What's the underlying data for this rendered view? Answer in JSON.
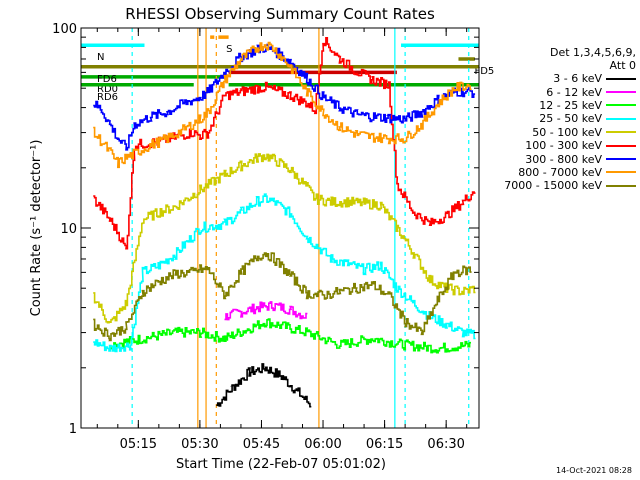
{
  "chart_data": {
    "type": "line",
    "title": "RHESSI Observing Summary Count Rates",
    "xlabel": "Start Time (22-Feb-07 05:01:02)",
    "ylabel": "Count Rate (s⁻¹ detector⁻¹)",
    "yscale": "log",
    "ylim": [
      1,
      100
    ],
    "xlim": [
      "05:01:02",
      "06:38:00"
    ],
    "x_ticks": [
      "05:15",
      "05:30",
      "05:45",
      "06:00",
      "06:15",
      "06:30"
    ],
    "y_ticks": [
      "1",
      "10",
      "100"
    ],
    "legend_title": "Det 1,3,4,5,6,9,",
    "legend_subtitle": "Att 0",
    "legend_position": "right",
    "series": [
      {
        "name": "3 - 6 keV",
        "color": "#000000",
        "points": [
          [
            "05:34",
            1.3
          ],
          [
            "05:38",
            1.6
          ],
          [
            "05:42",
            1.9
          ],
          [
            "05:46",
            2.0
          ],
          [
            "05:50",
            1.8
          ],
          [
            "05:54",
            1.5
          ],
          [
            "05:57",
            1.3
          ]
        ]
      },
      {
        "name": "6 - 12 keV",
        "color": "#ff00ff",
        "points": [
          [
            "05:36",
            3.6
          ],
          [
            "05:40",
            3.8
          ],
          [
            "05:44",
            4.0
          ],
          [
            "05:48",
            4.1
          ],
          [
            "05:52",
            3.9
          ],
          [
            "05:56",
            3.6
          ]
        ]
      },
      {
        "name": "12 - 25 keV",
        "color": "#00ff00",
        "points": [
          [
            "05:08",
            2.6
          ],
          [
            "05:16",
            2.8
          ],
          [
            "05:24",
            3.0
          ],
          [
            "05:30",
            3.0
          ],
          [
            "05:36",
            2.8
          ],
          [
            "05:46",
            3.4
          ],
          [
            "05:56",
            3.0
          ],
          [
            "06:04",
            2.6
          ],
          [
            "06:12",
            2.8
          ],
          [
            "06:20",
            2.6
          ],
          [
            "06:28",
            2.5
          ],
          [
            "06:36",
            2.6
          ]
        ]
      },
      {
        "name": "25 - 50 keV",
        "color": "#00ffff",
        "points": [
          [
            "05:04",
            2.7
          ],
          [
            "05:08",
            2.5
          ],
          [
            "05:13",
            2.6
          ],
          [
            "05:16",
            6.0
          ],
          [
            "05:20",
            6.5
          ],
          [
            "05:24",
            7.4
          ],
          [
            "05:28",
            9.0
          ],
          [
            "05:30",
            10.0
          ],
          [
            "05:36",
            10.5
          ],
          [
            "05:40",
            12.0
          ],
          [
            "05:44",
            13.6
          ],
          [
            "05:46",
            14.0
          ],
          [
            "05:48",
            13.5
          ],
          [
            "05:52",
            11.8
          ],
          [
            "05:56",
            9.0
          ],
          [
            "05:58",
            8.3
          ],
          [
            "06:02",
            7.0
          ],
          [
            "06:06",
            6.6
          ],
          [
            "06:10",
            6.2
          ],
          [
            "06:14",
            6.5
          ],
          [
            "06:18",
            5.0
          ],
          [
            "06:22",
            4.2
          ],
          [
            "06:26",
            3.6
          ],
          [
            "06:30",
            3.3
          ],
          [
            "06:34",
            3.0
          ],
          [
            "06:37",
            2.9
          ]
        ]
      },
      {
        "name": "50 - 100 keV",
        "color": "#cccc00",
        "points": [
          [
            "05:04",
            4.6
          ],
          [
            "05:08",
            3.3
          ],
          [
            "05:12",
            4.2
          ],
          [
            "05:16",
            11.0
          ],
          [
            "05:20",
            12.0
          ],
          [
            "05:24",
            12.8
          ],
          [
            "05:28",
            14.5
          ],
          [
            "05:30",
            15.5
          ],
          [
            "05:36",
            18.5
          ],
          [
            "05:40",
            20.5
          ],
          [
            "05:44",
            22.5
          ],
          [
            "05:46",
            23.0
          ],
          [
            "05:48",
            22.0
          ],
          [
            "05:52",
            19.5
          ],
          [
            "05:56",
            16.0
          ],
          [
            "05:58",
            14.0
          ],
          [
            "06:02",
            13.5
          ],
          [
            "06:06",
            13.5
          ],
          [
            "06:10",
            13.3
          ],
          [
            "06:14",
            13.0
          ],
          [
            "06:18",
            10.0
          ],
          [
            "06:22",
            7.5
          ],
          [
            "06:26",
            5.5
          ],
          [
            "06:30",
            5.0
          ],
          [
            "06:34",
            4.8
          ],
          [
            "06:37",
            5.0
          ]
        ]
      },
      {
        "name": "100 - 300 keV",
        "color": "#ff0000",
        "points": [
          [
            "05:04",
            14.0
          ],
          [
            "05:06",
            12.5
          ],
          [
            "05:08",
            11.0
          ],
          [
            "05:10",
            9.5
          ],
          [
            "05:12",
            7.8
          ],
          [
            "05:14",
            26.0
          ],
          [
            "05:20",
            27.0
          ],
          [
            "05:24",
            28.5
          ],
          [
            "05:28",
            30.0
          ],
          [
            "05:30",
            29.0
          ],
          [
            "05:32",
            30.0
          ],
          [
            "05:36",
            46.0
          ],
          [
            "05:40",
            48.0
          ],
          [
            "05:44",
            50.0
          ],
          [
            "05:46",
            50.5
          ],
          [
            "05:48",
            49.0
          ],
          [
            "05:52",
            46.0
          ],
          [
            "05:56",
            42.0
          ],
          [
            "05:58",
            39.0
          ],
          [
            "06:00",
            88.0
          ],
          [
            "06:04",
            70.0
          ],
          [
            "06:08",
            61.0
          ],
          [
            "06:12",
            55.0
          ],
          [
            "06:16",
            52.0
          ],
          [
            "06:18",
            16.5
          ],
          [
            "06:22",
            12.0
          ],
          [
            "06:26",
            10.5
          ],
          [
            "06:30",
            11.5
          ],
          [
            "06:34",
            13.5
          ],
          [
            "06:37",
            15.5
          ]
        ]
      },
      {
        "name": "300 - 800 keV",
        "color": "#0000ff",
        "points": [
          [
            "05:04",
            42.0
          ],
          [
            "05:06",
            39.0
          ],
          [
            "05:08",
            33.0
          ],
          [
            "05:10",
            28.0
          ],
          [
            "05:12",
            25.0
          ],
          [
            "05:14",
            33.0
          ],
          [
            "05:18",
            36.0
          ],
          [
            "05:22",
            38.0
          ],
          [
            "05:26",
            42.0
          ],
          [
            "05:30",
            45.0
          ],
          [
            "05:32",
            48.0
          ],
          [
            "05:36",
            60.0
          ],
          [
            "05:40",
            72.0
          ],
          [
            "05:44",
            78.0
          ],
          [
            "05:46",
            80.0
          ],
          [
            "05:48",
            77.0
          ],
          [
            "05:52",
            68.0
          ],
          [
            "05:56",
            56.0
          ],
          [
            "06:00",
            45.0
          ],
          [
            "06:04",
            40.0
          ],
          [
            "06:08",
            37.0
          ],
          [
            "06:12",
            36.0
          ],
          [
            "06:16",
            35.5
          ],
          [
            "06:20",
            35.0
          ],
          [
            "06:24",
            38.0
          ],
          [
            "06:28",
            44.0
          ],
          [
            "06:32",
            48.0
          ],
          [
            "06:36",
            48.0
          ],
          [
            "06:37",
            47.0
          ]
        ]
      },
      {
        "name": "800 - 7000 keV",
        "color": "#ff9900",
        "points": [
          [
            "05:04",
            30.0
          ],
          [
            "05:06",
            27.0
          ],
          [
            "05:08",
            24.0
          ],
          [
            "05:10",
            21.0
          ],
          [
            "05:12",
            22.5
          ],
          [
            "05:14",
            23.5
          ],
          [
            "05:18",
            26.0
          ],
          [
            "05:22",
            28.0
          ],
          [
            "05:26",
            31.0
          ],
          [
            "05:30",
            35.0
          ],
          [
            "05:32",
            38.0
          ],
          [
            "05:36",
            55.0
          ],
          [
            "05:40",
            70.0
          ],
          [
            "05:44",
            80.0
          ],
          [
            "05:46",
            83.0
          ],
          [
            "05:48",
            79.0
          ],
          [
            "05:52",
            64.0
          ],
          [
            "05:56",
            48.0
          ],
          [
            "06:00",
            38.0
          ],
          [
            "06:04",
            32.0
          ],
          [
            "06:08",
            29.5
          ],
          [
            "06:12",
            28.5
          ],
          [
            "06:16",
            28.0
          ],
          [
            "06:20",
            28.0
          ],
          [
            "06:24",
            33.0
          ],
          [
            "06:28",
            42.0
          ],
          [
            "06:32",
            50.0
          ],
          [
            "06:36",
            52.0
          ]
        ]
      },
      {
        "name": "7000 - 15000 keV",
        "color": "#808000",
        "points": [
          [
            "05:04",
            3.3
          ],
          [
            "05:08",
            2.9
          ],
          [
            "05:12",
            3.2
          ],
          [
            "05:16",
            4.8
          ],
          [
            "05:20",
            5.4
          ],
          [
            "05:24",
            5.9
          ],
          [
            "05:28",
            6.0
          ],
          [
            "05:30",
            6.2
          ],
          [
            "05:32",
            6.2
          ],
          [
            "05:36",
            4.6
          ],
          [
            "05:40",
            6.0
          ],
          [
            "05:44",
            7.2
          ],
          [
            "05:46",
            7.5
          ],
          [
            "05:48",
            7.0
          ],
          [
            "05:52",
            5.8
          ],
          [
            "05:56",
            4.7
          ],
          [
            "06:00",
            4.6
          ],
          [
            "06:04",
            4.8
          ],
          [
            "06:08",
            5.0
          ],
          [
            "06:12",
            5.2
          ],
          [
            "06:16",
            4.6
          ],
          [
            "06:20",
            3.4
          ],
          [
            "06:24",
            3.0
          ],
          [
            "06:28",
            4.4
          ],
          [
            "06:32",
            6.0
          ],
          [
            "06:36",
            6.2
          ]
        ]
      }
    ],
    "flag_bars": [
      {
        "label": "N",
        "color": "#00ffff",
        "x0": "05:01:02",
        "x1": "05:16:30",
        "y": 82
      },
      {
        "label": "S",
        "color": "#ff9900",
        "x0": "05:32:30",
        "x1": "05:33:30",
        "y": 90
      },
      {
        "label": "",
        "color": "#ff9900",
        "x0": "05:34:30",
        "x1": "05:37:00",
        "y": 90
      },
      {
        "label": "RD0",
        "color": "#00aa00",
        "x0": "05:01:02",
        "x1": "05:36:00",
        "y": 57
      },
      {
        "label": "RD6",
        "color": "#00aa00",
        "x0": "05:01:02",
        "x1": "05:28:30",
        "y": 52
      },
      {
        "label": "",
        "color": "#00aa00",
        "x0": "05:37:00",
        "x1": "06:38:00",
        "y": 52
      },
      {
        "label": "",
        "color": "#00ffff",
        "x0": "06:19:00",
        "x1": "06:38:00",
        "y": 82
      },
      {
        "label": "FD5",
        "color": "#808000",
        "x0": "06:33:00",
        "x1": "06:37:00",
        "y": 70
      },
      {
        "label": "FD6",
        "color": "#808000",
        "x0": "05:01:02",
        "x1": "06:38:00",
        "y": 64
      },
      {
        "label": "",
        "color": "#cc0000",
        "x0": "05:37:00",
        "x1": "06:18:00",
        "y": 60
      }
    ],
    "vlines": [
      {
        "x": "05:13:30",
        "color": "#00ffff",
        "style": "dashed"
      },
      {
        "x": "05:29:30",
        "color": "#ff9900",
        "style": "solid"
      },
      {
        "x": "05:31:30",
        "color": "#ff9900",
        "style": "solid"
      },
      {
        "x": "05:34:00",
        "color": "#ff9900",
        "style": "dashed"
      },
      {
        "x": "05:59:00",
        "color": "#ff9900",
        "style": "solid"
      },
      {
        "x": "06:17:30",
        "color": "#00ffff",
        "style": "solid"
      },
      {
        "x": "06:20:00",
        "color": "#00ffff",
        "style": "dashed"
      },
      {
        "x": "06:35:30",
        "color": "#00ffff",
        "style": "dashed"
      }
    ],
    "grid": false,
    "legend_labels_order": [
      "3 - 6 keV",
      "6 - 12 keV",
      "12 - 25 keV",
      "25 - 50 keV",
      "50 - 100 keV",
      "100 - 300 keV",
      "300 - 800 keV",
      "800 - 7000 keV",
      "7000 - 15000 keV"
    ]
  },
  "date_stamp": "14-Oct-2021 08:28"
}
